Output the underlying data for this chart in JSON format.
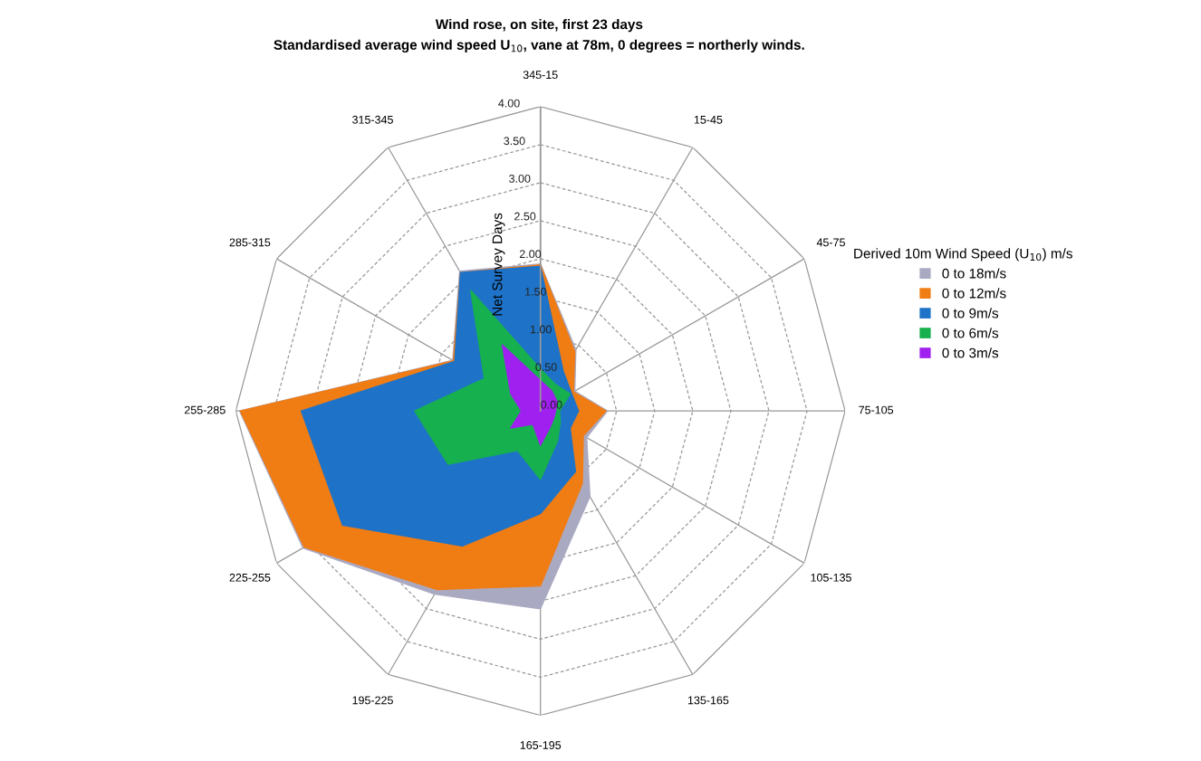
{
  "chart_data": {
    "type": "radar",
    "title": "Wind rose, on site, first 23 days",
    "subtitle": "Standardised average wind speed U$_{10}$, vane at 78m, 0 degrees = northerly winds.",
    "ylabel": "Net Survey Days",
    "legend_title": "Derived 10m Wind Speed (U$_{10}$) m/s",
    "legend": "right",
    "grid": true,
    "categories": [
      "345-15",
      "15-45",
      "45-75",
      "75-105",
      "105-135",
      "135-165",
      "165-195",
      "195-225",
      "225-255",
      "255-285",
      "285-315",
      "315-345"
    ],
    "ylim": [
      0,
      4
    ],
    "yticks": [
      {
        "value": 0,
        "label": "0.00"
      },
      {
        "value": 0.5,
        "label": "0.50"
      },
      {
        "value": 1,
        "label": "1.00"
      },
      {
        "value": 1.5,
        "label": "1.50"
      },
      {
        "value": 2,
        "label": "2.00"
      },
      {
        "value": 2.5,
        "label": "2.50"
      },
      {
        "value": 3,
        "label": "3.00"
      },
      {
        "value": 3.5,
        "label": "3.50"
      },
      {
        "value": 4,
        "label": "4.00"
      }
    ],
    "series": [
      {
        "name": "0 to 18m/s",
        "color": "#aaa9c2",
        "values": [
          1.93,
          0.93,
          0.52,
          0.88,
          0.7,
          1.3,
          2.6,
          2.78,
          3.6,
          3.95,
          1.33,
          2.12
        ]
      },
      {
        "name": "0 to 12m/s",
        "color": "#f07c14",
        "values": [
          1.92,
          0.9,
          0.5,
          0.86,
          0.65,
          1.1,
          2.3,
          2.71,
          3.58,
          3.94,
          1.32,
          2.1
        ]
      },
      {
        "name": "0 to 9m/s",
        "color": "#1e73c8",
        "values": [
          1.9,
          0.6,
          0.47,
          0.5,
          0.45,
          0.92,
          1.35,
          2.05,
          3.0,
          3.14,
          1.3,
          2.1
        ]
      },
      {
        "name": "0 to 6m/s",
        "color": "#17b04f",
        "values": [
          0.55,
          0.4,
          0.45,
          0.25,
          0.3,
          0.45,
          0.9,
          0.6,
          1.4,
          1.65,
          0.85,
          1.83
        ]
      },
      {
        "name": "0 to 3m/s",
        "color": "#a020f0",
        "values": [
          0.4,
          0.3,
          0.25,
          0.2,
          0.2,
          0.25,
          0.45,
          0.2,
          0.45,
          0.25,
          0.45,
          1.0
        ]
      }
    ]
  }
}
